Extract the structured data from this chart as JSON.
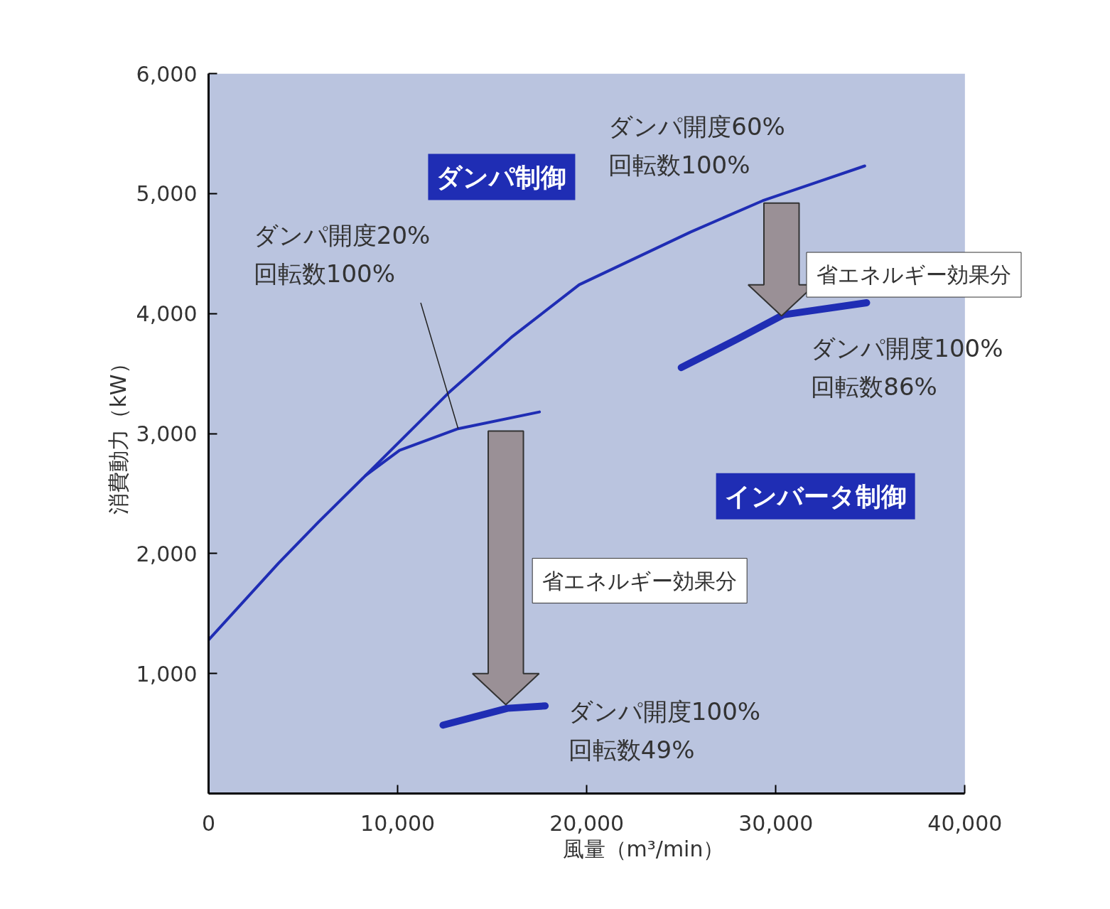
{
  "chart_data": {
    "type": "line",
    "xlabel": "風量（m³/min）",
    "ylabel": "消費動力（kW）",
    "xlim": [
      0,
      40000
    ],
    "ylim": [
      0,
      6000
    ],
    "xticks": [
      0,
      {
        "value": 10000,
        "label": "10,000"
      },
      {
        "value": 20000,
        "label": "20,000"
      },
      {
        "value": 30000,
        "label": "30,000"
      },
      {
        "value": 40000,
        "label": "40,000"
      }
    ],
    "yticks": [
      {
        "value": 1000,
        "label": "1,000"
      },
      {
        "value": 2000,
        "label": "2,000"
      },
      {
        "value": 3000,
        "label": "3,000"
      },
      {
        "value": 4000,
        "label": "4,000"
      },
      {
        "value": 5000,
        "label": "5,000"
      },
      {
        "value": 6000,
        "label": "6,000"
      }
    ],
    "series": [
      {
        "color": "#1f2db4",
        "x": [
          0,
          3700,
          5800,
          8300,
          12700,
          16000,
          19600,
          25500,
          29300,
          34700
        ],
        "values": [
          1280,
          1920,
          2260,
          2650,
          3340,
          3800,
          4240,
          4680,
          4940,
          5230
        ]
      },
      {
        "color": "#1f2db4",
        "x": [
          8300,
          10100,
          13200,
          17500
        ],
        "values": [
          2650,
          2860,
          3040,
          3180
        ]
      },
      {
        "color": "#1f2db4",
        "x": [
          25000,
          28000,
          30400,
          34800
        ],
        "values": [
          3550,
          3790,
          3990,
          4090
        ]
      },
      {
        "color": "#1f2db4",
        "x": [
          12400,
          15800,
          17800
        ],
        "values": [
          570,
          710,
          730
        ]
      }
    ],
    "annotations": [
      "ダンパ制御",
      "ダンパ開度60%\n回転数100%",
      {
        "text": "ダンパ開度20%\n回転数100%",
        "x": 13200,
        "y": 3040
      },
      {
        "text": "省エネルギー効果分",
        "x": 30300,
        "y": 3980
      },
      "ダンパ開度100%\n回転数86%",
      "インバータ制御",
      "省エネルギー効果分",
      "ダンパ開度100%\n回転数49%"
    ],
    "grid": false,
    "line_style": "solid"
  }
}
